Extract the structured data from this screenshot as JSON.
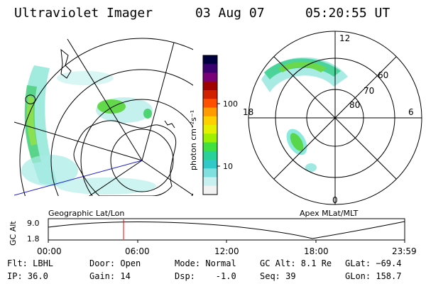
{
  "header": {
    "instrument": "Ultraviolet Imager",
    "date": "03 Aug 07",
    "time": "05:20:55 UT"
  },
  "colorbar": {
    "label": "photon cm⁻²s⁻¹",
    "ticks": [
      "100",
      "10"
    ],
    "colors": [
      "#000040",
      "#3a0070",
      "#7a0078",
      "#a00000",
      "#d02000",
      "#ff5000",
      "#ff9a00",
      "#ffd000",
      "#e4f000",
      "#9ef000",
      "#40e040",
      "#28d09a",
      "#30c8c8",
      "#80e0e0",
      "#c8f0f0",
      "#f2f2f2"
    ]
  },
  "panels": {
    "geo_label": "Geographic Lat/Lon",
    "apex_label": "Apex MLat/MLT",
    "apex_mlt": [
      "12",
      "18",
      "6",
      "0"
    ],
    "apex_mlat": [
      "60",
      "70",
      "80"
    ]
  },
  "altitude_plot": {
    "axis_label": "GC Alt",
    "y_ticks": [
      "9.0",
      "1.8"
    ],
    "x_ticks": [
      "00:00",
      "06:00",
      "12:00",
      "18:00",
      "23:59"
    ],
    "cursor_color": "#ff0000"
  },
  "info": {
    "flt": "Flt: LBHL",
    "ip": "IP: 36.0",
    "door": "Door: Open",
    "gain": "Gain: 14",
    "mode": "Mode: Normal",
    "dsp": "Dsp:    -1.0",
    "gc_alt": "GC Alt: 8.1 Re",
    "seq": "Seq: 39",
    "glat": "GLat: −69.4",
    "glon": "GLon: 158.7"
  }
}
